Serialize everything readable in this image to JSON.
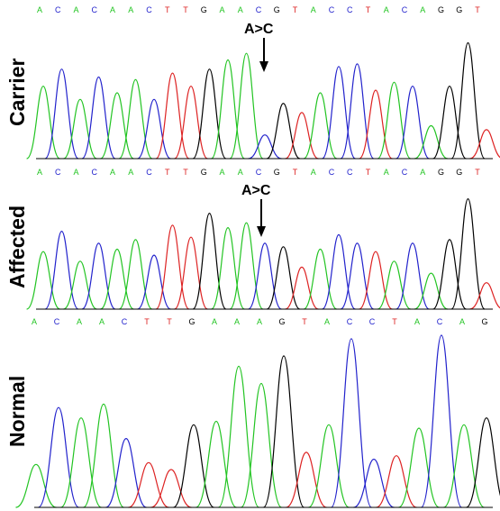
{
  "colors": {
    "A": "#22c422",
    "C": "#2222cc",
    "G": "#000000",
    "T": "#dd2222",
    "baseline": "#000000",
    "arrow": "#000000"
  },
  "panels": [
    {
      "id": "carrier",
      "label": "Carrier",
      "bases": [
        "A",
        "C",
        "A",
        "C",
        "A",
        "A",
        "C",
        "T",
        "T",
        "G",
        "A",
        "A",
        "C",
        "G",
        "T",
        "A",
        "C",
        "C",
        "T",
        "A",
        "C",
        "A",
        "G",
        "G",
        "T"
      ],
      "mutation": {
        "text": "A>C",
        "base_index": 12
      },
      "peaks": [
        {
          "b": "A",
          "h": 0.55
        },
        {
          "b": "C",
          "h": 0.68
        },
        {
          "b": "A",
          "h": 0.45
        },
        {
          "b": "C",
          "h": 0.62
        },
        {
          "b": "A",
          "h": 0.5
        },
        {
          "b": "A",
          "h": 0.6
        },
        {
          "b": "C",
          "h": 0.45
        },
        {
          "b": "T",
          "h": 0.65
        },
        {
          "b": "T",
          "h": 0.55
        },
        {
          "b": "G",
          "h": 0.68
        },
        {
          "b": "A",
          "h": 0.75
        },
        {
          "b": "A",
          "h": 0.8
        },
        {
          "b": "C",
          "h": 0.18
        },
        {
          "b": "G",
          "h": 0.42
        },
        {
          "b": "T",
          "h": 0.35
        },
        {
          "b": "A",
          "h": 0.5
        },
        {
          "b": "C",
          "h": 0.7
        },
        {
          "b": "C",
          "h": 0.72
        },
        {
          "b": "T",
          "h": 0.52
        },
        {
          "b": "A",
          "h": 0.58
        },
        {
          "b": "C",
          "h": 0.55
        },
        {
          "b": "A",
          "h": 0.25
        },
        {
          "b": "G",
          "h": 0.55
        },
        {
          "b": "G",
          "h": 0.88
        },
        {
          "b": "T",
          "h": 0.22
        }
      ]
    },
    {
      "id": "affected",
      "label": "Affected",
      "bases": [
        "A",
        "C",
        "A",
        "C",
        "A",
        "A",
        "C",
        "T",
        "T",
        "G",
        "A",
        "A",
        "C",
        "G",
        "T",
        "A",
        "C",
        "C",
        "T",
        "A",
        "C",
        "A",
        "G",
        "G",
        "T"
      ],
      "mutation": {
        "text": "A>C",
        "base_index": 12
      },
      "peaks": [
        {
          "b": "A",
          "h": 0.48
        },
        {
          "b": "C",
          "h": 0.65
        },
        {
          "b": "A",
          "h": 0.4
        },
        {
          "b": "C",
          "h": 0.55
        },
        {
          "b": "A",
          "h": 0.5
        },
        {
          "b": "A",
          "h": 0.58
        },
        {
          "b": "C",
          "h": 0.45
        },
        {
          "b": "T",
          "h": 0.7
        },
        {
          "b": "T",
          "h": 0.6
        },
        {
          "b": "G",
          "h": 0.8
        },
        {
          "b": "A",
          "h": 0.68
        },
        {
          "b": "A",
          "h": 0.72
        },
        {
          "b": "C",
          "h": 0.55
        },
        {
          "b": "G",
          "h": 0.52
        },
        {
          "b": "T",
          "h": 0.35
        },
        {
          "b": "A",
          "h": 0.5
        },
        {
          "b": "C",
          "h": 0.62
        },
        {
          "b": "C",
          "h": 0.55
        },
        {
          "b": "T",
          "h": 0.48
        },
        {
          "b": "A",
          "h": 0.4
        },
        {
          "b": "C",
          "h": 0.55
        },
        {
          "b": "A",
          "h": 0.3
        },
        {
          "b": "G",
          "h": 0.58
        },
        {
          "b": "G",
          "h": 0.92
        },
        {
          "b": "T",
          "h": 0.22
        }
      ]
    },
    {
      "id": "normal",
      "label": "Normal",
      "bases": [
        "A",
        "C",
        "A",
        "A",
        "C",
        "T",
        "T",
        "G",
        "A",
        "A",
        "A",
        "G",
        "T",
        "A",
        "C",
        "C",
        "T",
        "A",
        "C",
        "A",
        "G"
      ],
      "mutation": null,
      "peaks": [
        {
          "b": "A",
          "h": 0.25
        },
        {
          "b": "C",
          "h": 0.58
        },
        {
          "b": "A",
          "h": 0.52
        },
        {
          "b": "A",
          "h": 0.6
        },
        {
          "b": "C",
          "h": 0.4
        },
        {
          "b": "T",
          "h": 0.26
        },
        {
          "b": "T",
          "h": 0.22
        },
        {
          "b": "G",
          "h": 0.48
        },
        {
          "b": "A",
          "h": 0.5
        },
        {
          "b": "A",
          "h": 0.82
        },
        {
          "b": "A",
          "h": 0.72
        },
        {
          "b": "G",
          "h": 0.88
        },
        {
          "b": "T",
          "h": 0.32
        },
        {
          "b": "A",
          "h": 0.48
        },
        {
          "b": "C",
          "h": 0.98
        },
        {
          "b": "C",
          "h": 0.28
        },
        {
          "b": "T",
          "h": 0.3
        },
        {
          "b": "A",
          "h": 0.46
        },
        {
          "b": "C",
          "h": 1.0
        },
        {
          "b": "A",
          "h": 0.48
        },
        {
          "b": "G",
          "h": 0.52
        }
      ]
    }
  ]
}
